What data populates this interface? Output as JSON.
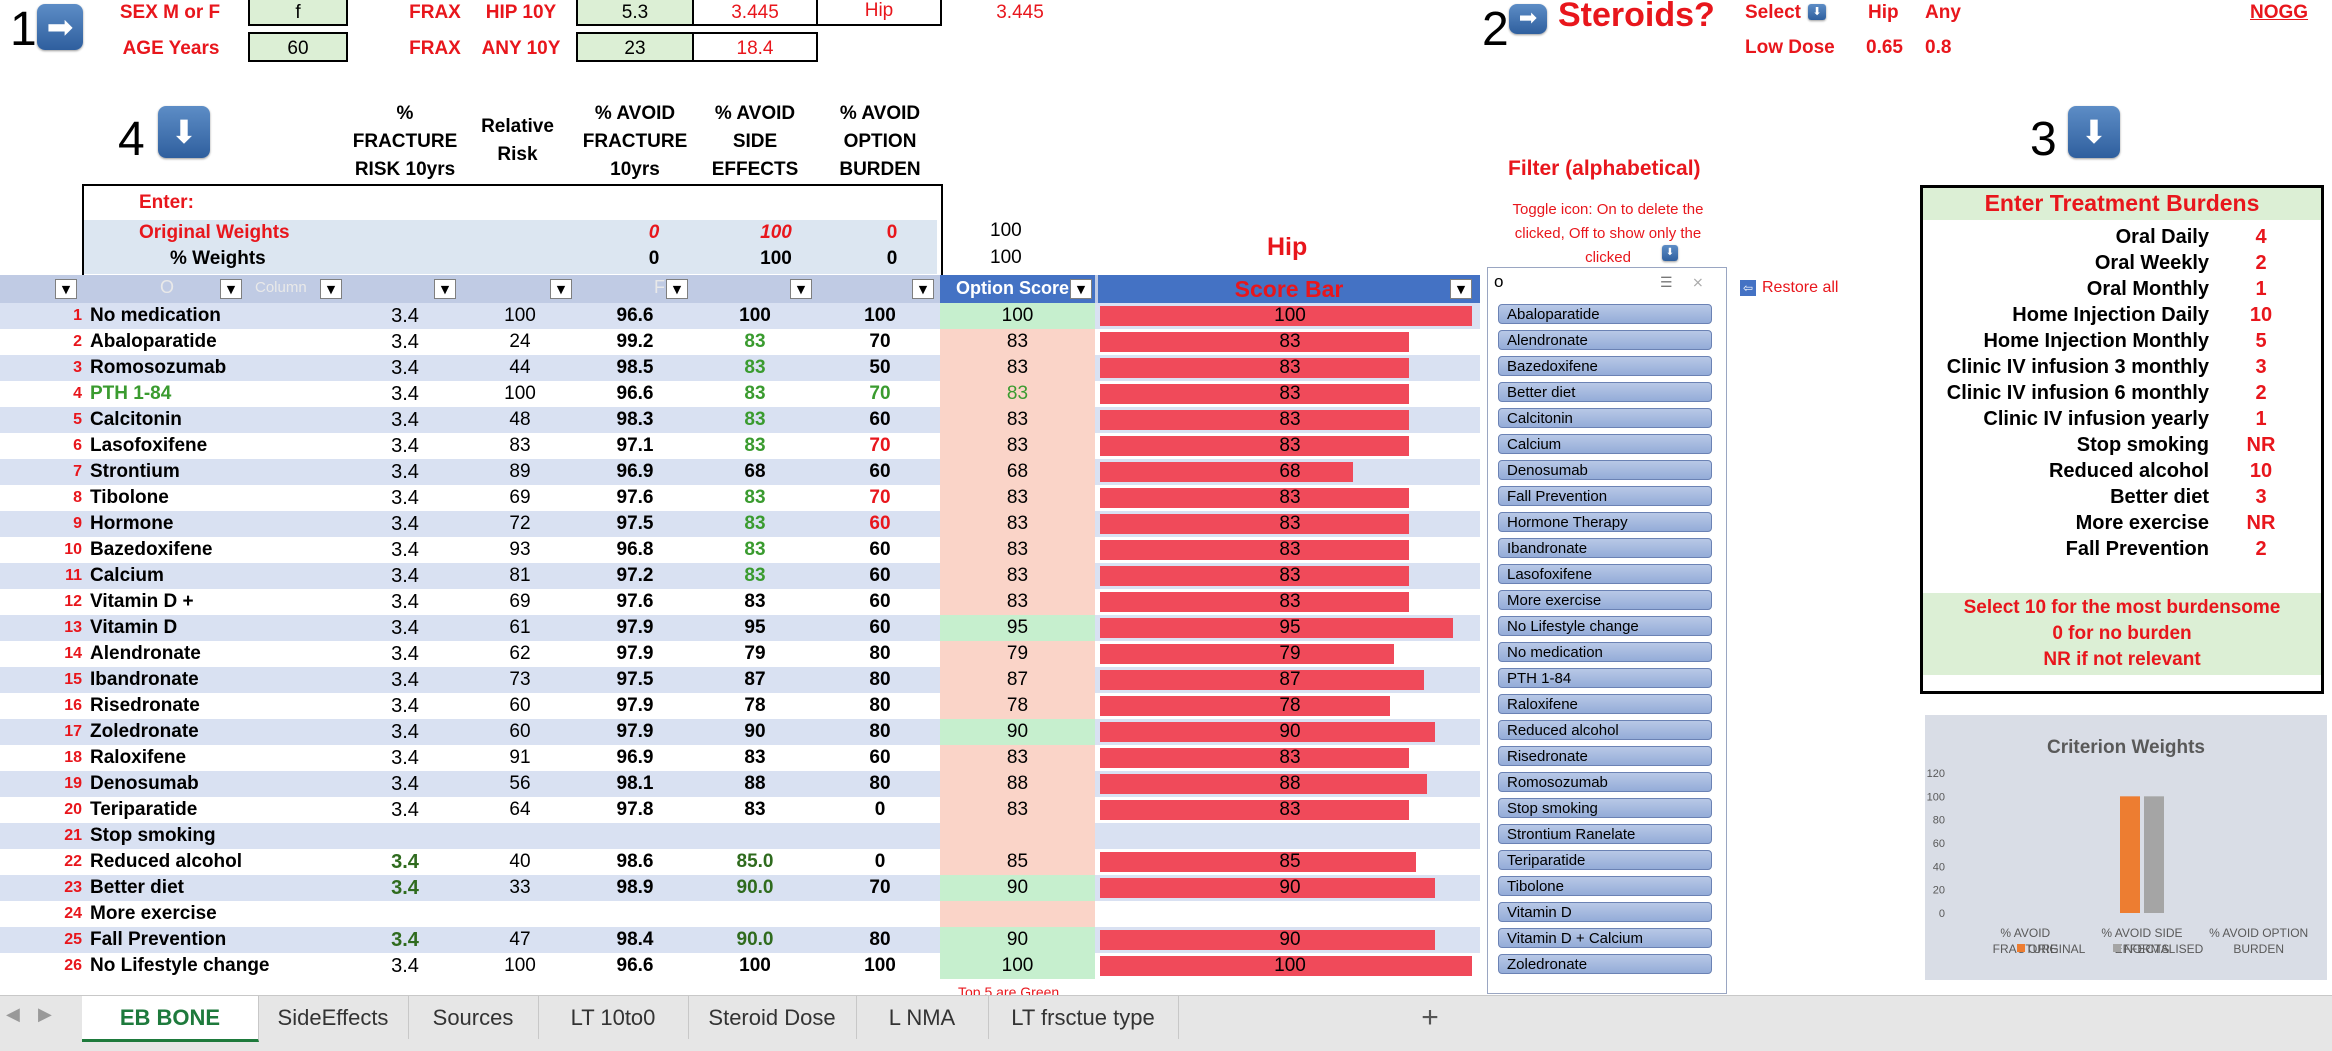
{
  "top": {
    "step1": "1",
    "sex_label": "SEX  M or F",
    "sex_value": "f",
    "age_label": "AGE Years",
    "age_value": "60",
    "frax1": "FRAX",
    "hip10y_label": "HIP 10Y",
    "hip10y_value": "5.3",
    "hip10y_adj": "3.445",
    "hip_label": "Hip",
    "hip_extra": "3.445",
    "frax2": "FRAX",
    "any10y_label": "ANY 10Y",
    "any10y_value": "23",
    "any10y_adj": "18.4",
    "step2": "2",
    "steroids": "Steroids?",
    "select_label": "Select",
    "hip_col": "Hip",
    "any_col": "Any",
    "low_dose": "Low Dose",
    "low_hip": "0.65",
    "low_any": "0.8",
    "nogg": "NOGG"
  },
  "step3": "3",
  "step4": "4",
  "headers": {
    "frac_risk": [
      "%",
      "FRACTURE",
      "RISK 10yrs"
    ],
    "rel_risk": [
      "Relative",
      "Risk"
    ],
    "avoid_frac": [
      "% AVOID",
      "FRACTURE",
      "10yrs"
    ],
    "avoid_side": [
      "% AVOID",
      "SIDE",
      "EFFECTS"
    ],
    "avoid_burden": [
      "% AVOID",
      "OPTION",
      "BURDEN"
    ],
    "hip": "Hip",
    "score_bar": "Score Bar",
    "option_score": "Option Score",
    "filter_o": "O",
    "filter_column": "Column",
    "filter_f": "F"
  },
  "weights": {
    "enter": "Enter:",
    "original_label": "Original Weights",
    "original": [
      "0",
      "100",
      "0"
    ],
    "pct_label": "% Weights",
    "pct": [
      "0",
      "100",
      "0"
    ],
    "extra1": "100",
    "extra2": "100"
  },
  "rows": [
    {
      "n": "1",
      "name": "No medication",
      "risk": "3.4",
      "rel": "100",
      "avf": "96.6",
      "avs": "100",
      "avb": "100",
      "score": "100",
      "sbg": "green",
      "avsColor": "",
      "avbColor": ""
    },
    {
      "n": "2",
      "name": "Abaloparatide",
      "risk": "3.4",
      "rel": "24",
      "avf": "99.2",
      "avs": "83",
      "avb": "70",
      "score": "83",
      "sbg": "pink",
      "avsColor": "green",
      "avbColor": ""
    },
    {
      "n": "3",
      "name": "Romosozumab",
      "risk": "3.4",
      "rel": "44",
      "avf": "98.5",
      "avs": "83",
      "avb": "50",
      "score": "83",
      "sbg": "pink",
      "avsColor": "green",
      "avbColor": ""
    },
    {
      "n": "4",
      "name": "PTH 1-84",
      "risk": "3.4",
      "rel": "100",
      "avf": "96.6",
      "avs": "83",
      "avb": "70",
      "score": "83",
      "sbg": "pink",
      "avsColor": "green",
      "avbColor": "green",
      "nameGreen": true
    },
    {
      "n": "5",
      "name": "Calcitonin",
      "risk": "3.4",
      "rel": "48",
      "avf": "98.3",
      "avs": "83",
      "avb": "60",
      "score": "83",
      "sbg": "pink",
      "avsColor": "green",
      "avbColor": ""
    },
    {
      "n": "6",
      "name": "Lasofoxifene",
      "risk": "3.4",
      "rel": "83",
      "avf": "97.1",
      "avs": "83",
      "avb": "70",
      "score": "83",
      "sbg": "pink",
      "avsColor": "green",
      "avbColor": "red"
    },
    {
      "n": "7",
      "name": "Strontium",
      "risk": "3.4",
      "rel": "89",
      "avf": "96.9",
      "avs": "68",
      "avb": "60",
      "score": "68",
      "sbg": "pink",
      "avsColor": "",
      "avbColor": ""
    },
    {
      "n": "8",
      "name": "Tibolone",
      "risk": "3.4",
      "rel": "69",
      "avf": "97.6",
      "avs": "83",
      "avb": "70",
      "score": "83",
      "sbg": "pink",
      "avsColor": "green",
      "avbColor": "red"
    },
    {
      "n": "9",
      "name": "Hormone",
      "risk": "3.4",
      "rel": "72",
      "avf": "97.5",
      "avs": "83",
      "avb": "60",
      "score": "83",
      "sbg": "pink",
      "avsColor": "green",
      "avbColor": "red"
    },
    {
      "n": "10",
      "name": "Bazedoxifene",
      "risk": "3.4",
      "rel": "93",
      "avf": "96.8",
      "avs": "83",
      "avb": "60",
      "score": "83",
      "sbg": "pink",
      "avsColor": "green",
      "avbColor": ""
    },
    {
      "n": "11",
      "name": "Calcium",
      "risk": "3.4",
      "rel": "81",
      "avf": "97.2",
      "avs": "83",
      "avb": "60",
      "score": "83",
      "sbg": "pink",
      "avsColor": "green",
      "avbColor": ""
    },
    {
      "n": "12",
      "name": "Vitamin D +",
      "risk": "3.4",
      "rel": "69",
      "avf": "97.6",
      "avs": "83",
      "avb": "60",
      "score": "83",
      "sbg": "pink",
      "avsColor": "",
      "avbColor": ""
    },
    {
      "n": "13",
      "name": "Vitamin D",
      "risk": "3.4",
      "rel": "61",
      "avf": "97.9",
      "avs": "95",
      "avb": "60",
      "score": "95",
      "sbg": "green",
      "avsColor": "",
      "avbColor": ""
    },
    {
      "n": "14",
      "name": " Alendronate",
      "risk": "3.4",
      "rel": "62",
      "avf": "97.9",
      "avs": "79",
      "avb": "80",
      "score": "79",
      "sbg": "pink",
      "avsColor": "",
      "avbColor": ""
    },
    {
      "n": "15",
      "name": "Ibandronate",
      "risk": "3.4",
      "rel": "73",
      "avf": "97.5",
      "avs": "87",
      "avb": "80",
      "score": "87",
      "sbg": "pink",
      "avsColor": "",
      "avbColor": ""
    },
    {
      "n": "16",
      "name": "Risedronate",
      "risk": "3.4",
      "rel": "60",
      "avf": "97.9",
      "avs": "78",
      "avb": "80",
      "score": "78",
      "sbg": "pink",
      "avsColor": "",
      "avbColor": ""
    },
    {
      "n": "17",
      "name": "Zoledronate",
      "risk": "3.4",
      "rel": "60",
      "avf": "97.9",
      "avs": "90",
      "avb": "80",
      "score": "90",
      "sbg": "green",
      "avsColor": "",
      "avbColor": ""
    },
    {
      "n": "18",
      "name": "Raloxifene",
      "risk": "3.4",
      "rel": "91",
      "avf": "96.9",
      "avs": "83",
      "avb": "60",
      "score": "83",
      "sbg": "pink",
      "avsColor": "",
      "avbColor": ""
    },
    {
      "n": "19",
      "name": "Denosumab",
      "risk": "3.4",
      "rel": "56",
      "avf": "98.1",
      "avs": "88",
      "avb": "80",
      "score": "88",
      "sbg": "pink",
      "avsColor": "",
      "avbColor": ""
    },
    {
      "n": "20",
      "name": "Teriparatide",
      "risk": "3.4",
      "rel": "64",
      "avf": "97.8",
      "avs": "83",
      "avb": "0",
      "score": "83",
      "sbg": "pink",
      "avsColor": "",
      "avbColor": ""
    },
    {
      "n": "21",
      "name": "Stop smoking",
      "risk": "",
      "rel": "",
      "avf": "",
      "avs": "",
      "avb": "",
      "score": "",
      "sbg": "pink",
      "avsColor": "",
      "avbColor": ""
    },
    {
      "n": "22",
      "name": "Reduced alcohol",
      "risk": "3.4",
      "rel": "40",
      "avf": "98.6",
      "avs": "85.0",
      "avb": "0",
      "score": "85",
      "sbg": "pink",
      "avsColor": "darkgreen",
      "avbColor": "",
      "riskGreen": true
    },
    {
      "n": "23",
      "name": "Better diet",
      "risk": "3.4",
      "rel": "33",
      "avf": "98.9",
      "avs": "90.0",
      "avb": "70",
      "score": "90",
      "sbg": "green",
      "avsColor": "darkgreen",
      "avbColor": "",
      "riskGreen": true
    },
    {
      "n": "24",
      "name": "More exercise",
      "risk": "",
      "rel": "",
      "avf": "",
      "avs": "",
      "avb": "",
      "score": "",
      "sbg": "pink",
      "avsColor": "",
      "avbColor": ""
    },
    {
      "n": "25",
      "name": "Fall Prevention",
      "risk": "3.4",
      "rel": "47",
      "avf": "98.4",
      "avs": "90.0",
      "avb": "80",
      "score": "90",
      "sbg": "green",
      "avsColor": "darkgreen",
      "avbColor": "",
      "riskGreen": true
    },
    {
      "n": "26",
      "name": "No Lifestyle change",
      "risk": "3.4",
      "rel": "100",
      "avf": "96.6",
      "avs": "100",
      "avb": "100",
      "score": "100",
      "sbg": "green",
      "avsColor": "",
      "avbColor": ""
    }
  ],
  "top5_note": "Top 5 are Green",
  "filter": {
    "title": "Filter (alphabetical)",
    "toggle_note": [
      "Toggle icon: On to delete the",
      "clicked, Off to show only the",
      "clicked"
    ],
    "search": "o",
    "restore": "Restore all",
    "items": [
      "Abaloparatide",
      "Alendronate",
      "Bazedoxifene",
      "Better diet",
      "Calcitonin",
      "Calcium",
      "Denosumab",
      "Fall Prevention",
      "Hormone Therapy",
      "Ibandronate",
      "Lasofoxifene",
      "More exercise",
      "No Lifestyle change",
      "No medication",
      "PTH 1-84",
      "Raloxifene",
      "Reduced alcohol",
      "Risedronate",
      "Romosozumab",
      "Stop smoking",
      "Strontium Ranelate",
      "Teriparatide",
      "Tibolone",
      "Vitamin  D",
      "Vitamin  D + Calcium",
      "Zoledronate"
    ]
  },
  "burdens": {
    "title": "Enter Treatment Burdens",
    "items": [
      {
        "label": "Oral Daily",
        "value": "4"
      },
      {
        "label": "Oral Weekly",
        "value": "2"
      },
      {
        "label": "Oral Monthly",
        "value": "1"
      },
      {
        "label": "Home Injection Daily",
        "value": "10"
      },
      {
        "label": "Home Injection Monthly",
        "value": "5"
      },
      {
        "label": "Clinic IV infusion 3 monthly",
        "value": "3"
      },
      {
        "label": "Clinic IV infusion 6 monthly",
        "value": "2"
      },
      {
        "label": "Clinic IV infusion yearly",
        "value": "1"
      },
      {
        "label": "Stop smoking",
        "value": "NR"
      },
      {
        "label": "Reduced alcohol",
        "value": "10"
      },
      {
        "label": "Better diet",
        "value": "3"
      },
      {
        "label": "More exercise",
        "value": "NR"
      },
      {
        "label": "Fall Prevention",
        "value": "2"
      }
    ],
    "notes": [
      "Select 10 for the most burdensome",
      "0 for no burden",
      "NR if not relevant"
    ]
  },
  "chart_data": {
    "type": "bar",
    "title": "Criterion Weights",
    "categories": [
      "% AVOID FRACTURE",
      "% AVOID SIDE EFFECTS",
      "% AVOID OPTION BURDEN"
    ],
    "category_lines": [
      [
        "% AVOID",
        "FRACTURE"
      ],
      [
        "% AVOID SIDE",
        "EFFECTS"
      ],
      [
        "% AVOID OPTION",
        "BURDEN"
      ]
    ],
    "series": [
      {
        "name": "ORIGINAL",
        "values": [
          0,
          100,
          0
        ],
        "color": "#ed7d31"
      },
      {
        "name": "NORMALISED",
        "values": [
          0,
          100,
          0
        ],
        "color": "#a5a5a5"
      }
    ],
    "ylim": [
      0,
      120
    ],
    "yticks": [
      "0",
      "20",
      "40",
      "60",
      "80",
      "100",
      "120"
    ],
    "legend": "bottom"
  },
  "tabs": [
    "EB BONE",
    "SideEffects",
    "Sources",
    "LT 10to0",
    "Steroid Dose",
    "L NMA",
    "LT frsctue type"
  ],
  "colors": {
    "accent_red": "#e8161c",
    "bar": "#f04a5a",
    "row_alt": "#d9e1f2",
    "green_cell": "#c6efce",
    "pink_cell": "#fad4c8",
    "tab_active": "#1e7a3c"
  }
}
